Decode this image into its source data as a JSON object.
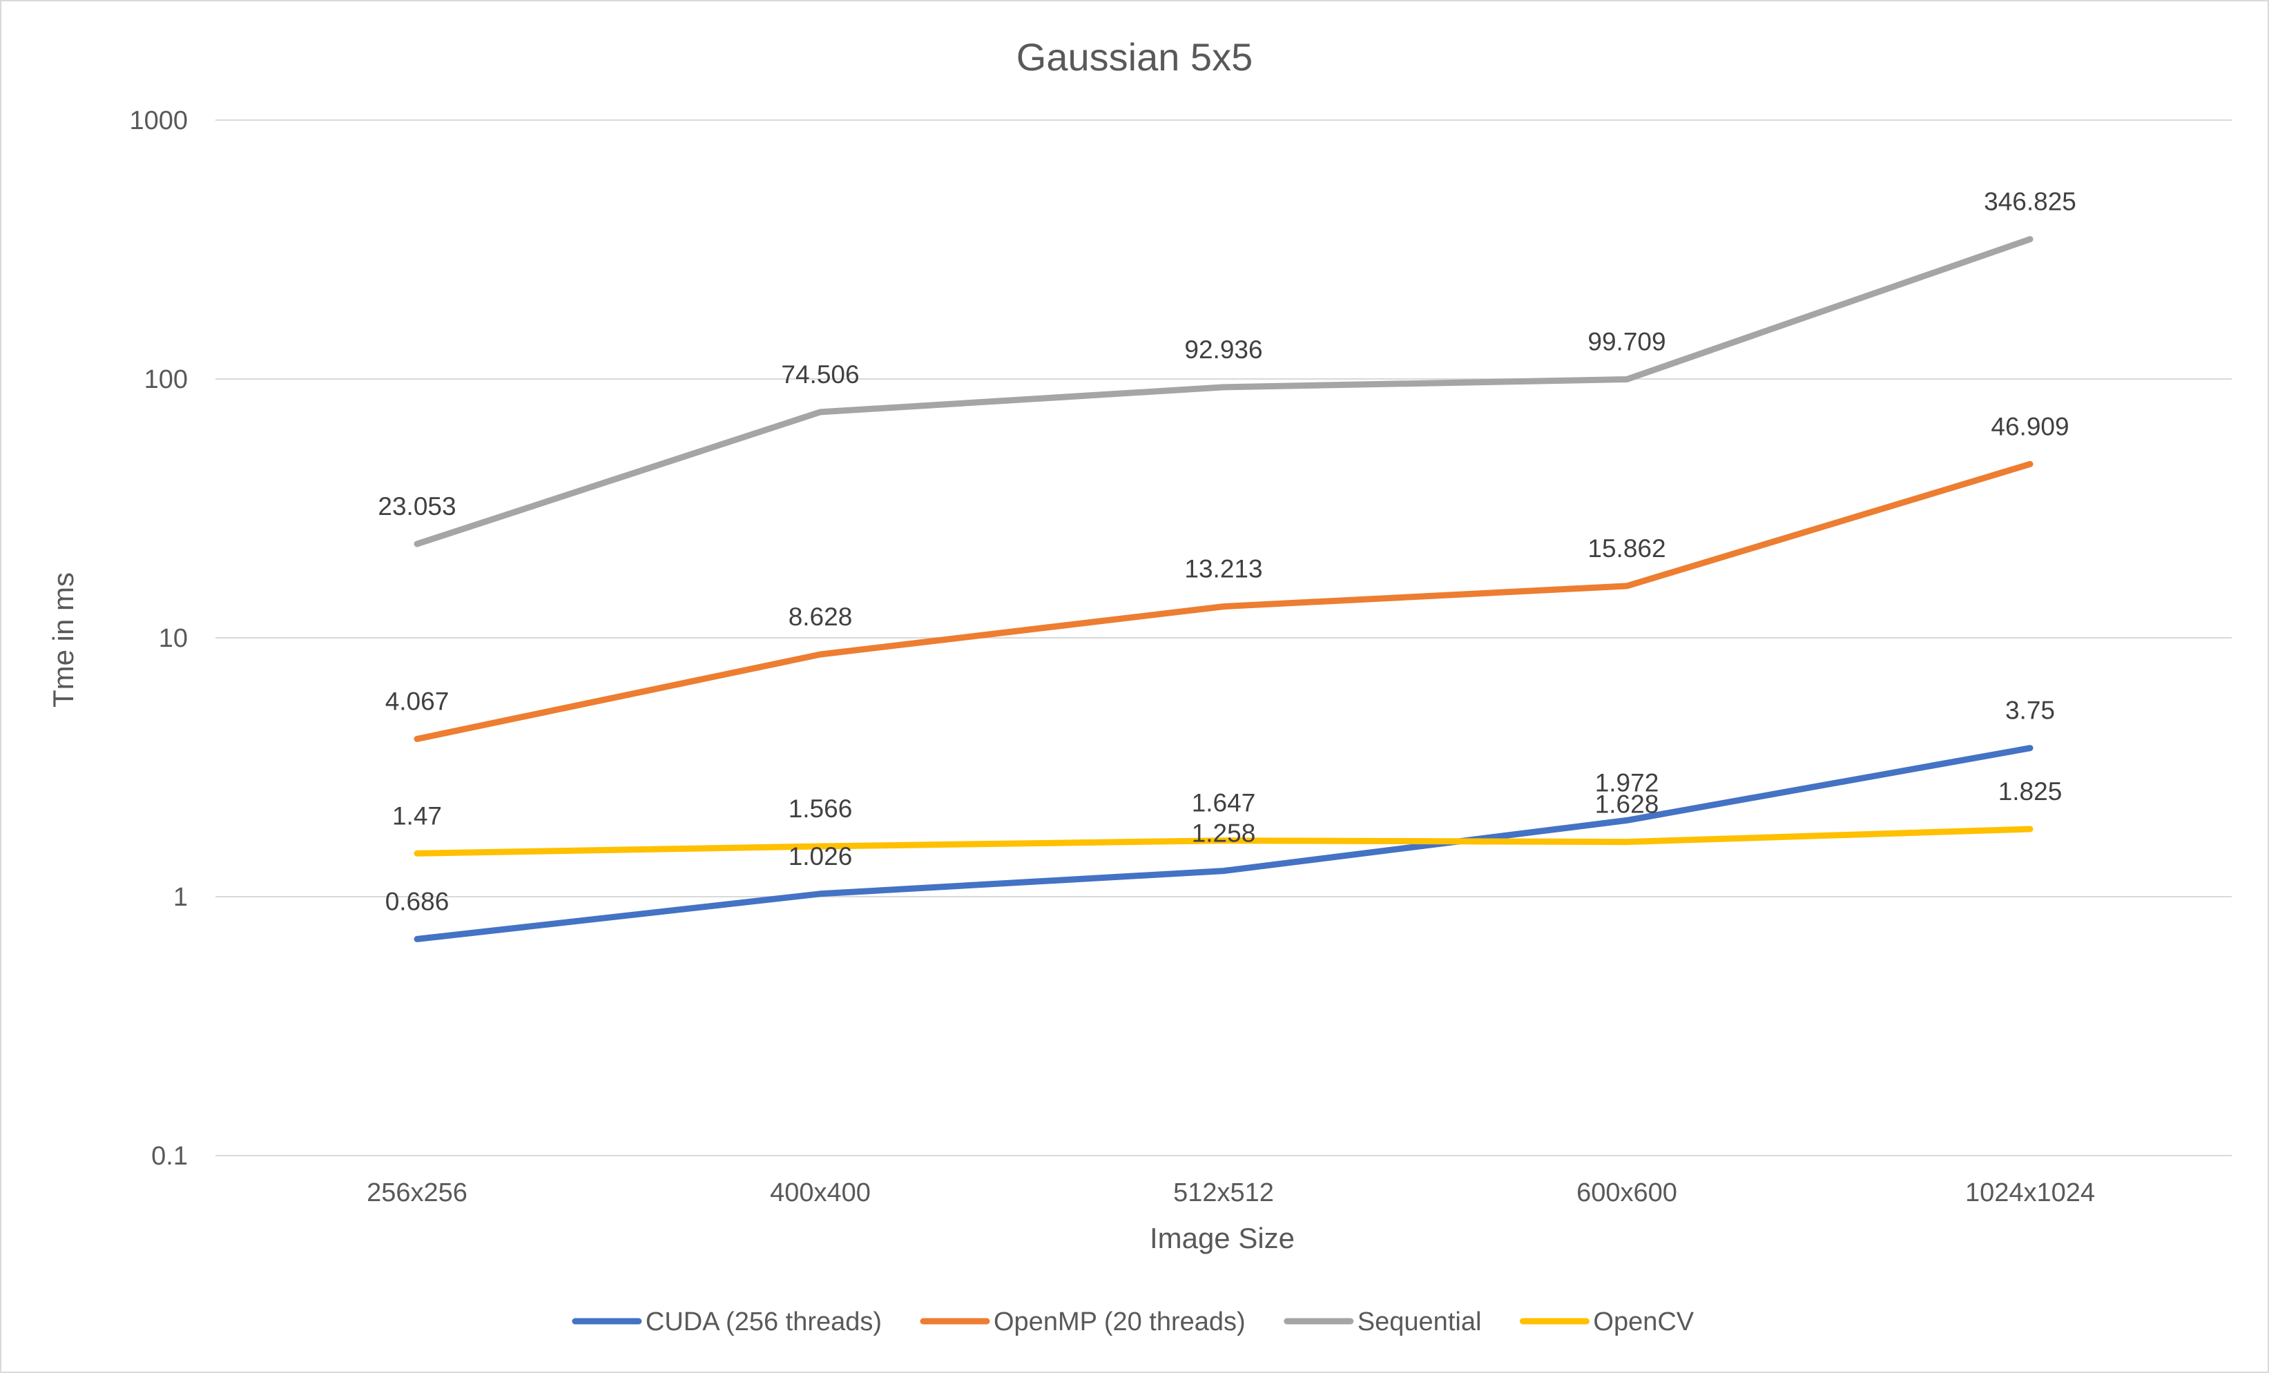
{
  "chart_data": {
    "type": "line",
    "title": "Gaussian 5x5",
    "xlabel": "Image Size",
    "ylabel": "Tme in ms",
    "yscale": "log",
    "ylim": [
      0.1,
      1000
    ],
    "yticks": [
      "0.1",
      "1",
      "10",
      "100",
      "1000"
    ],
    "categories": [
      "256x256",
      "400x400",
      "512x512",
      "600x600",
      "1024x1024"
    ],
    "grid": true,
    "legend_position": "bottom",
    "series": [
      {
        "name": "CUDA (256 threads)",
        "color": "#4472c4",
        "values": [
          0.686,
          1.026,
          1.258,
          1.972,
          3.75
        ],
        "labels": [
          "0.686",
          "1.026",
          "1.258",
          "1.972",
          "3.75"
        ]
      },
      {
        "name": "OpenMP (20 threads)",
        "color": "#ed7d31",
        "values": [
          4.067,
          8.628,
          13.213,
          15.862,
          46.909
        ],
        "labels": [
          "4.067",
          "8.628",
          "13.213",
          "15.862",
          "46.909"
        ]
      },
      {
        "name": "Sequential",
        "color": "#a5a5a5",
        "values": [
          23.053,
          74.506,
          92.936,
          99.709,
          346.825
        ],
        "labels": [
          "23.053",
          "74.506",
          "92.936",
          "99.709",
          "346.825"
        ]
      },
      {
        "name": "OpenCV",
        "color": "#ffc000",
        "values": [
          1.47,
          1.566,
          1.647,
          1.628,
          1.825
        ],
        "labels": [
          "1.47",
          "1.566",
          "1.647",
          "1.628",
          "1.825"
        ]
      }
    ]
  }
}
